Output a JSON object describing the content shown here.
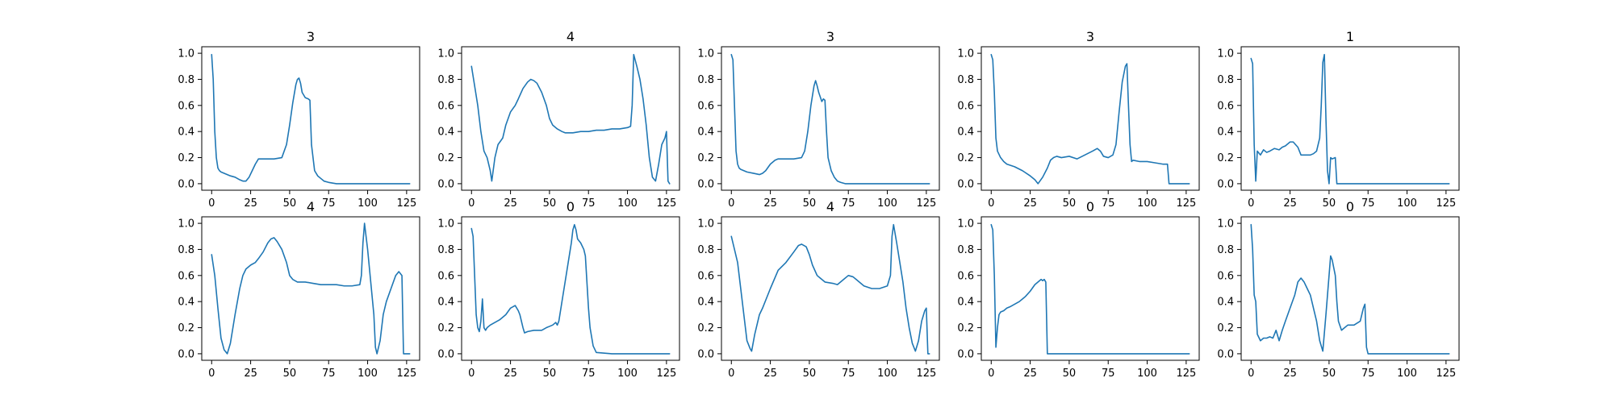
{
  "figure": {
    "line_color": "#1f77b4"
  },
  "chart_data": [
    {
      "type": "line",
      "title": "3",
      "xlim": [
        0,
        127
      ],
      "ylim": [
        0,
        1
      ],
      "xticks": [
        0,
        25,
        50,
        75,
        100,
        125
      ],
      "yticks": [
        0.0,
        0.2,
        0.4,
        0.6,
        0.8,
        1.0
      ],
      "x": [
        0,
        1,
        2,
        3,
        4,
        5,
        6,
        8,
        10,
        12,
        15,
        18,
        20,
        22,
        24,
        26,
        28,
        30,
        32,
        35,
        40,
        45,
        48,
        50,
        52,
        54,
        55,
        56,
        57,
        58,
        60,
        62,
        63,
        64,
        66,
        68,
        70,
        72,
        75,
        80,
        90,
        100,
        110,
        127
      ],
      "y": [
        0.99,
        0.8,
        0.4,
        0.2,
        0.12,
        0.1,
        0.09,
        0.08,
        0.07,
        0.06,
        0.05,
        0.03,
        0.02,
        0.02,
        0.05,
        0.1,
        0.15,
        0.19,
        0.19,
        0.19,
        0.19,
        0.2,
        0.3,
        0.45,
        0.62,
        0.76,
        0.8,
        0.81,
        0.77,
        0.7,
        0.66,
        0.65,
        0.64,
        0.3,
        0.1,
        0.06,
        0.04,
        0.02,
        0.01,
        0.0,
        0.0,
        0.0,
        0.0,
        0.0
      ]
    },
    {
      "type": "line",
      "title": "4",
      "xlim": [
        0,
        127
      ],
      "ylim": [
        0,
        1
      ],
      "xticks": [
        0,
        25,
        50,
        75,
        100,
        125
      ],
      "yticks": [
        0.0,
        0.2,
        0.4,
        0.6,
        0.8,
        1.0
      ],
      "x": [
        0,
        2,
        4,
        6,
        8,
        10,
        12,
        13,
        15,
        17,
        20,
        22,
        25,
        28,
        30,
        33,
        36,
        38,
        40,
        42,
        45,
        48,
        50,
        52,
        55,
        58,
        60,
        65,
        70,
        75,
        80,
        85,
        90,
        95,
        100,
        102,
        103,
        104,
        106,
        108,
        110,
        112,
        114,
        116,
        118,
        120,
        122,
        124,
        125,
        126,
        127
      ],
      "y": [
        0.9,
        0.75,
        0.6,
        0.4,
        0.25,
        0.2,
        0.1,
        0.02,
        0.2,
        0.3,
        0.35,
        0.45,
        0.55,
        0.6,
        0.65,
        0.73,
        0.78,
        0.8,
        0.79,
        0.77,
        0.7,
        0.6,
        0.5,
        0.45,
        0.42,
        0.4,
        0.39,
        0.39,
        0.4,
        0.4,
        0.41,
        0.41,
        0.42,
        0.42,
        0.43,
        0.44,
        0.6,
        0.99,
        0.9,
        0.8,
        0.65,
        0.45,
        0.2,
        0.05,
        0.02,
        0.15,
        0.3,
        0.35,
        0.4,
        0.02,
        0.0
      ]
    },
    {
      "type": "line",
      "title": "3",
      "xlim": [
        0,
        127
      ],
      "ylim": [
        0,
        1
      ],
      "xticks": [
        0,
        25,
        50,
        75,
        100,
        125
      ],
      "yticks": [
        0.0,
        0.2,
        0.4,
        0.6,
        0.8,
        1.0
      ],
      "x": [
        0,
        1,
        2,
        3,
        4,
        5,
        6,
        8,
        10,
        14,
        18,
        20,
        22,
        25,
        28,
        30,
        35,
        40,
        45,
        47,
        49,
        51,
        53,
        54,
        55,
        56,
        58,
        59,
        60,
        61,
        62,
        64,
        66,
        68,
        70,
        73,
        80,
        90,
        100,
        110,
        127
      ],
      "y": [
        0.99,
        0.95,
        0.6,
        0.25,
        0.15,
        0.12,
        0.11,
        0.1,
        0.09,
        0.08,
        0.07,
        0.08,
        0.1,
        0.15,
        0.18,
        0.19,
        0.19,
        0.19,
        0.2,
        0.25,
        0.4,
        0.6,
        0.75,
        0.79,
        0.75,
        0.7,
        0.63,
        0.65,
        0.64,
        0.4,
        0.2,
        0.1,
        0.05,
        0.02,
        0.01,
        0.0,
        0.0,
        0.0,
        0.0,
        0.0,
        0.0
      ]
    },
    {
      "type": "line",
      "title": "3",
      "xlim": [
        0,
        127
      ],
      "ylim": [
        0,
        1
      ],
      "xticks": [
        0,
        25,
        50,
        75,
        100,
        125
      ],
      "yticks": [
        0.0,
        0.2,
        0.4,
        0.6,
        0.8,
        1.0
      ],
      "x": [
        0,
        1,
        2,
        3,
        4,
        6,
        8,
        10,
        15,
        20,
        25,
        28,
        30,
        33,
        36,
        38,
        40,
        42,
        45,
        50,
        55,
        60,
        65,
        68,
        70,
        72,
        75,
        78,
        80,
        82,
        84,
        86,
        87,
        88,
        89,
        90,
        91,
        95,
        100,
        105,
        110,
        113,
        114,
        127
      ],
      "y": [
        0.99,
        0.95,
        0.7,
        0.35,
        0.25,
        0.2,
        0.17,
        0.15,
        0.13,
        0.1,
        0.06,
        0.03,
        0.0,
        0.05,
        0.12,
        0.18,
        0.2,
        0.21,
        0.2,
        0.21,
        0.19,
        0.22,
        0.25,
        0.27,
        0.25,
        0.21,
        0.2,
        0.22,
        0.3,
        0.55,
        0.78,
        0.9,
        0.92,
        0.6,
        0.3,
        0.17,
        0.18,
        0.17,
        0.17,
        0.16,
        0.15,
        0.15,
        0.0,
        0.0
      ]
    },
    {
      "type": "line",
      "title": "1",
      "xlim": [
        0,
        127
      ],
      "ylim": [
        0,
        1
      ],
      "xticks": [
        0,
        25,
        50,
        75,
        100,
        125
      ],
      "yticks": [
        0.0,
        0.2,
        0.4,
        0.6,
        0.8,
        1.0
      ],
      "x": [
        0,
        1,
        2,
        3,
        4,
        6,
        8,
        10,
        12,
        15,
        18,
        20,
        22,
        25,
        27,
        30,
        32,
        34,
        36,
        38,
        40,
        42,
        44,
        45,
        46,
        47,
        48,
        49,
        50,
        51,
        52,
        54,
        55,
        56,
        57,
        60,
        70,
        80,
        90,
        100,
        110,
        127
      ],
      "y": [
        0.96,
        0.92,
        0.3,
        0.02,
        0.25,
        0.22,
        0.26,
        0.24,
        0.25,
        0.27,
        0.26,
        0.28,
        0.29,
        0.32,
        0.32,
        0.28,
        0.22,
        0.22,
        0.22,
        0.22,
        0.23,
        0.25,
        0.35,
        0.6,
        0.93,
        0.99,
        0.5,
        0.1,
        0.0,
        0.2,
        0.19,
        0.2,
        0.0,
        0.0,
        0.0,
        0.0,
        0.0,
        0.0,
        0.0,
        0.0,
        0.0,
        0.0
      ]
    },
    {
      "type": "line",
      "title": "4",
      "xlim": [
        0,
        127
      ],
      "ylim": [
        0,
        1
      ],
      "xticks": [
        0,
        25,
        50,
        75,
        100,
        125
      ],
      "yticks": [
        0.0,
        0.2,
        0.4,
        0.6,
        0.8,
        1.0
      ],
      "x": [
        0,
        2,
        4,
        6,
        8,
        10,
        12,
        15,
        18,
        20,
        22,
        25,
        28,
        30,
        33,
        36,
        38,
        40,
        42,
        45,
        48,
        50,
        52,
        55,
        60,
        65,
        70,
        75,
        80,
        85,
        90,
        95,
        96,
        97,
        98,
        99,
        100,
        102,
        104,
        105,
        106,
        108,
        110,
        112,
        115,
        118,
        120,
        122,
        123,
        125,
        127
      ],
      "y": [
        0.76,
        0.6,
        0.35,
        0.12,
        0.03,
        0.0,
        0.08,
        0.3,
        0.5,
        0.6,
        0.65,
        0.68,
        0.7,
        0.73,
        0.78,
        0.85,
        0.88,
        0.89,
        0.86,
        0.8,
        0.7,
        0.6,
        0.57,
        0.55,
        0.55,
        0.54,
        0.53,
        0.53,
        0.53,
        0.52,
        0.52,
        0.53,
        0.6,
        0.85,
        1.0,
        0.9,
        0.8,
        0.55,
        0.3,
        0.05,
        0.0,
        0.1,
        0.3,
        0.4,
        0.5,
        0.6,
        0.63,
        0.6,
        0.0,
        0.0,
        0.0
      ]
    },
    {
      "type": "line",
      "title": "0",
      "xlim": [
        0,
        127
      ],
      "ylim": [
        0,
        1
      ],
      "xticks": [
        0,
        25,
        50,
        75,
        100,
        125
      ],
      "yticks": [
        0.0,
        0.2,
        0.4,
        0.6,
        0.8,
        1.0
      ],
      "x": [
        0,
        1,
        2,
        3,
        4,
        5,
        6,
        7,
        8,
        9,
        10,
        12,
        15,
        18,
        20,
        22,
        25,
        28,
        30,
        31,
        32,
        33,
        34,
        36,
        40,
        45,
        48,
        50,
        52,
        54,
        55,
        56,
        58,
        60,
        62,
        64,
        65,
        66,
        67,
        68,
        70,
        72,
        73,
        74,
        75,
        76,
        78,
        80,
        90,
        100,
        110,
        127
      ],
      "y": [
        0.96,
        0.9,
        0.6,
        0.3,
        0.2,
        0.17,
        0.25,
        0.42,
        0.2,
        0.18,
        0.2,
        0.22,
        0.24,
        0.26,
        0.28,
        0.3,
        0.35,
        0.37,
        0.33,
        0.3,
        0.25,
        0.2,
        0.16,
        0.17,
        0.18,
        0.18,
        0.2,
        0.21,
        0.22,
        0.24,
        0.22,
        0.25,
        0.4,
        0.55,
        0.7,
        0.85,
        0.95,
        0.99,
        0.95,
        0.88,
        0.85,
        0.8,
        0.75,
        0.55,
        0.35,
        0.2,
        0.06,
        0.01,
        0.0,
        0.0,
        0.0,
        0.0
      ]
    },
    {
      "type": "line",
      "title": "4",
      "xlim": [
        0,
        127
      ],
      "ylim": [
        0,
        1
      ],
      "xticks": [
        0,
        25,
        50,
        75,
        100,
        125
      ],
      "yticks": [
        0.0,
        0.2,
        0.4,
        0.6,
        0.8,
        1.0
      ],
      "x": [
        0,
        2,
        4,
        6,
        8,
        10,
        12,
        13,
        15,
        18,
        20,
        25,
        30,
        35,
        40,
        43,
        45,
        48,
        50,
        52,
        55,
        60,
        65,
        68,
        70,
        72,
        75,
        78,
        80,
        85,
        90,
        95,
        100,
        102,
        103,
        104,
        106,
        108,
        110,
        112,
        114,
        116,
        118,
        120,
        122,
        124,
        125,
        126,
        127
      ],
      "y": [
        0.9,
        0.8,
        0.7,
        0.5,
        0.3,
        0.1,
        0.04,
        0.02,
        0.15,
        0.3,
        0.35,
        0.5,
        0.64,
        0.7,
        0.78,
        0.83,
        0.84,
        0.82,
        0.76,
        0.68,
        0.6,
        0.55,
        0.54,
        0.53,
        0.55,
        0.57,
        0.6,
        0.59,
        0.57,
        0.52,
        0.5,
        0.5,
        0.52,
        0.6,
        0.9,
        0.99,
        0.85,
        0.7,
        0.55,
        0.35,
        0.2,
        0.08,
        0.02,
        0.1,
        0.25,
        0.33,
        0.35,
        0.0,
        0.0
      ]
    },
    {
      "type": "line",
      "title": "0",
      "xlim": [
        0,
        127
      ],
      "ylim": [
        0,
        1
      ],
      "xticks": [
        0,
        25,
        50,
        75,
        100,
        125
      ],
      "yticks": [
        0.0,
        0.2,
        0.4,
        0.6,
        0.8,
        1.0
      ],
      "x": [
        0,
        1,
        2,
        3,
        4,
        5,
        6,
        8,
        10,
        12,
        15,
        18,
        20,
        22,
        25,
        28,
        30,
        32,
        33,
        34,
        35,
        36,
        37,
        40,
        50,
        60,
        70,
        80,
        90,
        100,
        110,
        120,
        127
      ],
      "y": [
        0.99,
        0.95,
        0.6,
        0.05,
        0.2,
        0.3,
        0.32,
        0.33,
        0.35,
        0.36,
        0.38,
        0.4,
        0.42,
        0.44,
        0.48,
        0.53,
        0.55,
        0.57,
        0.56,
        0.57,
        0.55,
        0.0,
        0.0,
        0.0,
        0.0,
        0.0,
        0.0,
        0.0,
        0.0,
        0.0,
        0.0,
        0.0,
        0.0
      ]
    },
    {
      "type": "line",
      "title": "0",
      "xlim": [
        0,
        127
      ],
      "ylim": [
        0,
        1
      ],
      "xticks": [
        0,
        25,
        50,
        75,
        100,
        125
      ],
      "yticks": [
        0.0,
        0.2,
        0.4,
        0.6,
        0.8,
        1.0
      ],
      "x": [
        0,
        1,
        2,
        3,
        4,
        6,
        8,
        10,
        12,
        14,
        16,
        18,
        20,
        22,
        25,
        28,
        30,
        32,
        34,
        36,
        38,
        40,
        42,
        44,
        46,
        48,
        50,
        51,
        52,
        54,
        55,
        56,
        58,
        60,
        62,
        64,
        66,
        70,
        72,
        73,
        74,
        75,
        80,
        90,
        100,
        110,
        127
      ],
      "y": [
        0.99,
        0.8,
        0.45,
        0.4,
        0.15,
        0.1,
        0.12,
        0.12,
        0.13,
        0.12,
        0.18,
        0.1,
        0.18,
        0.25,
        0.35,
        0.45,
        0.55,
        0.58,
        0.55,
        0.5,
        0.45,
        0.35,
        0.25,
        0.1,
        0.02,
        0.3,
        0.6,
        0.75,
        0.72,
        0.6,
        0.4,
        0.25,
        0.18,
        0.2,
        0.22,
        0.22,
        0.22,
        0.25,
        0.35,
        0.38,
        0.05,
        0.0,
        0.0,
        0.0,
        0.0,
        0.0,
        0.0
      ]
    }
  ]
}
